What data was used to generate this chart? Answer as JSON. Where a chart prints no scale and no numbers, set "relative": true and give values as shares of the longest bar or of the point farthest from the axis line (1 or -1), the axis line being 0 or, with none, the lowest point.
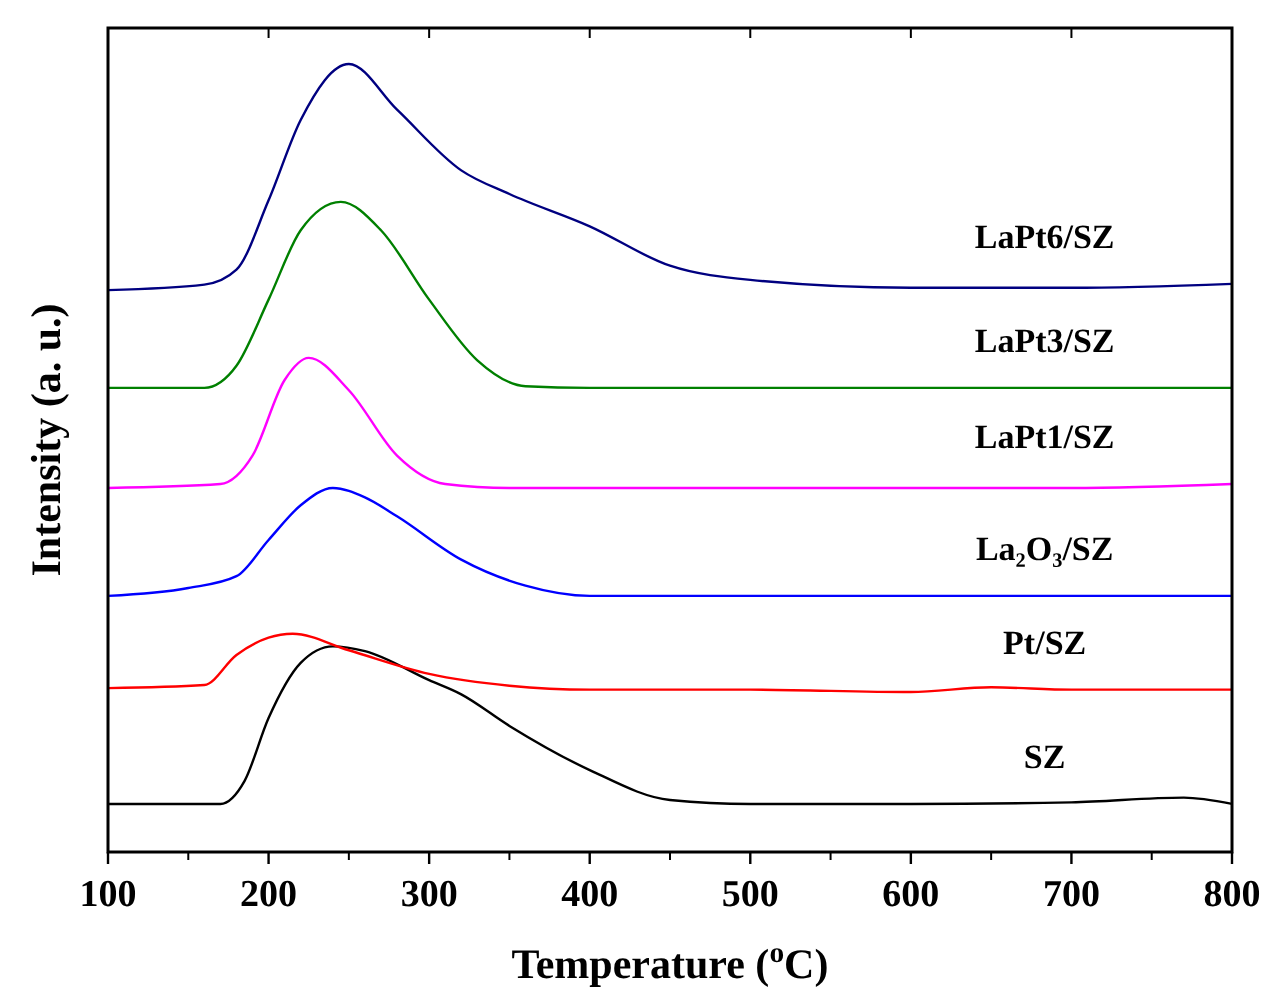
{
  "chart_data": {
    "type": "line",
    "relative": true,
    "xlabel": "Temperature ($^{o}$C)",
    "ylabel": "Intensity (a. u.)",
    "xlim": [
      100,
      800
    ],
    "xticks": [
      100,
      200,
      300,
      400,
      500,
      600,
      700,
      800
    ],
    "line_style": "solid",
    "series": [
      {
        "name": "SZ",
        "color": "#000000",
        "x": [
          100,
          170,
          185,
          200,
          220,
          240,
          260,
          300,
          320,
          350,
          400,
          450,
          500,
          600,
          700,
          770,
          800
        ],
        "values": [
          0.061,
          0.061,
          0.09,
          0.17,
          0.24,
          0.261,
          0.255,
          0.218,
          0.2,
          0.16,
          0.104,
          0.066,
          0.061,
          0.061,
          0.063,
          0.069,
          0.061
        ]
      },
      {
        "name": "Pt/SZ",
        "color": "#ff0000",
        "x": [
          100,
          160,
          180,
          200,
          215,
          250,
          300,
          350,
          400,
          500,
          600,
          650,
          700,
          800
        ],
        "values": [
          0.208,
          0.212,
          0.25,
          0.272,
          0.277,
          0.256,
          0.226,
          0.211,
          0.206,
          0.206,
          0.203,
          0.209,
          0.206,
          0.206
        ]
      },
      {
        "name": "La₂O₃/SZ",
        "color": "#0000ff",
        "x": [
          100,
          150,
          180,
          200,
          220,
          240,
          260,
          280,
          320,
          360,
          400,
          500,
          600,
          700,
          800
        ],
        "values": [
          0.325,
          0.335,
          0.35,
          0.396,
          0.44,
          0.462,
          0.45,
          0.426,
          0.371,
          0.338,
          0.325,
          0.325,
          0.325,
          0.325,
          0.325
        ]
      },
      {
        "name": "LaPt1/SZ",
        "color": "#ff00ff",
        "x": [
          100,
          170,
          190,
          210,
          225,
          250,
          280,
          310,
          350,
          500,
          700,
          800
        ],
        "values": [
          0.462,
          0.467,
          0.503,
          0.599,
          0.627,
          0.586,
          0.503,
          0.467,
          0.462,
          0.462,
          0.462,
          0.467
        ]
      },
      {
        "name": "LaPt3/SZ",
        "color": "#008000",
        "x": [
          100,
          160,
          180,
          200,
          220,
          245,
          270,
          300,
          330,
          360,
          400,
          600,
          800
        ],
        "values": [
          0.589,
          0.589,
          0.617,
          0.701,
          0.789,
          0.825,
          0.789,
          0.701,
          0.624,
          0.591,
          0.589,
          0.589,
          0.589
        ]
      },
      {
        "name": "LaPt6/SZ",
        "color": "#000080",
        "x": [
          100,
          160,
          180,
          200,
          220,
          250,
          280,
          320,
          350,
          400,
          450,
          500,
          600,
          700,
          800
        ],
        "values": [
          0.713,
          0.72,
          0.739,
          0.827,
          0.929,
          1,
          0.942,
          0.865,
          0.835,
          0.794,
          0.744,
          0.726,
          0.716,
          0.716,
          0.721
        ]
      }
    ]
  }
}
